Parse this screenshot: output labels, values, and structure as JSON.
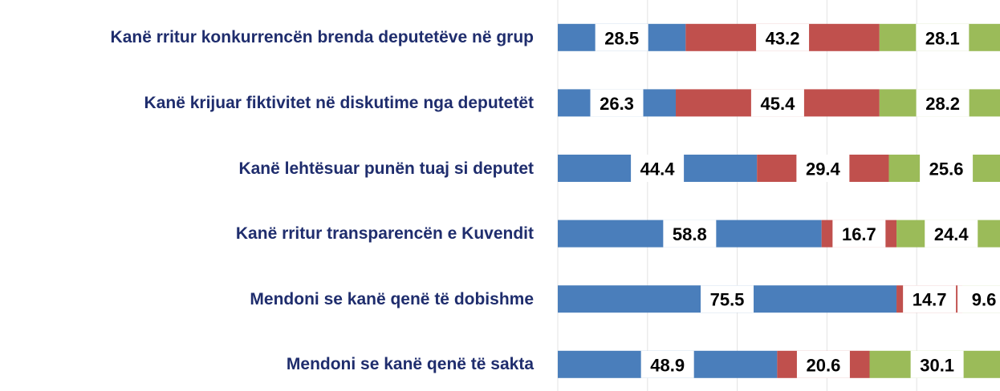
{
  "chart_data": {
    "type": "stacked_barh",
    "categories": [
      "Kanë rritur konkurrencën brenda deputetëve në grup",
      "Kanë krijuar fiktivitet në diskutime nga deputetët",
      "Kanë lehtësuar punën tuaj si deputet",
      "Kanë rritur transparencën  e Kuvendit",
      "Mendoni se kanë qenë të dobishme",
      "Mendoni se kanë qenë të sakta"
    ],
    "series": [
      {
        "color": "#4a7ebb",
        "values": [
          28.5,
          26.3,
          44.4,
          58.8,
          75.5,
          48.9
        ]
      },
      {
        "color": "#c0504d",
        "values": [
          43.2,
          45.4,
          29.4,
          16.7,
          14.7,
          20.6
        ]
      },
      {
        "color": "#9bbb59",
        "values": [
          28.1,
          28.2,
          25.6,
          24.4,
          9.6,
          30.1
        ]
      }
    ],
    "xlim": [
      0,
      100
    ],
    "xticks": [
      0,
      20,
      40,
      60,
      80,
      100
    ],
    "grid": true
  }
}
